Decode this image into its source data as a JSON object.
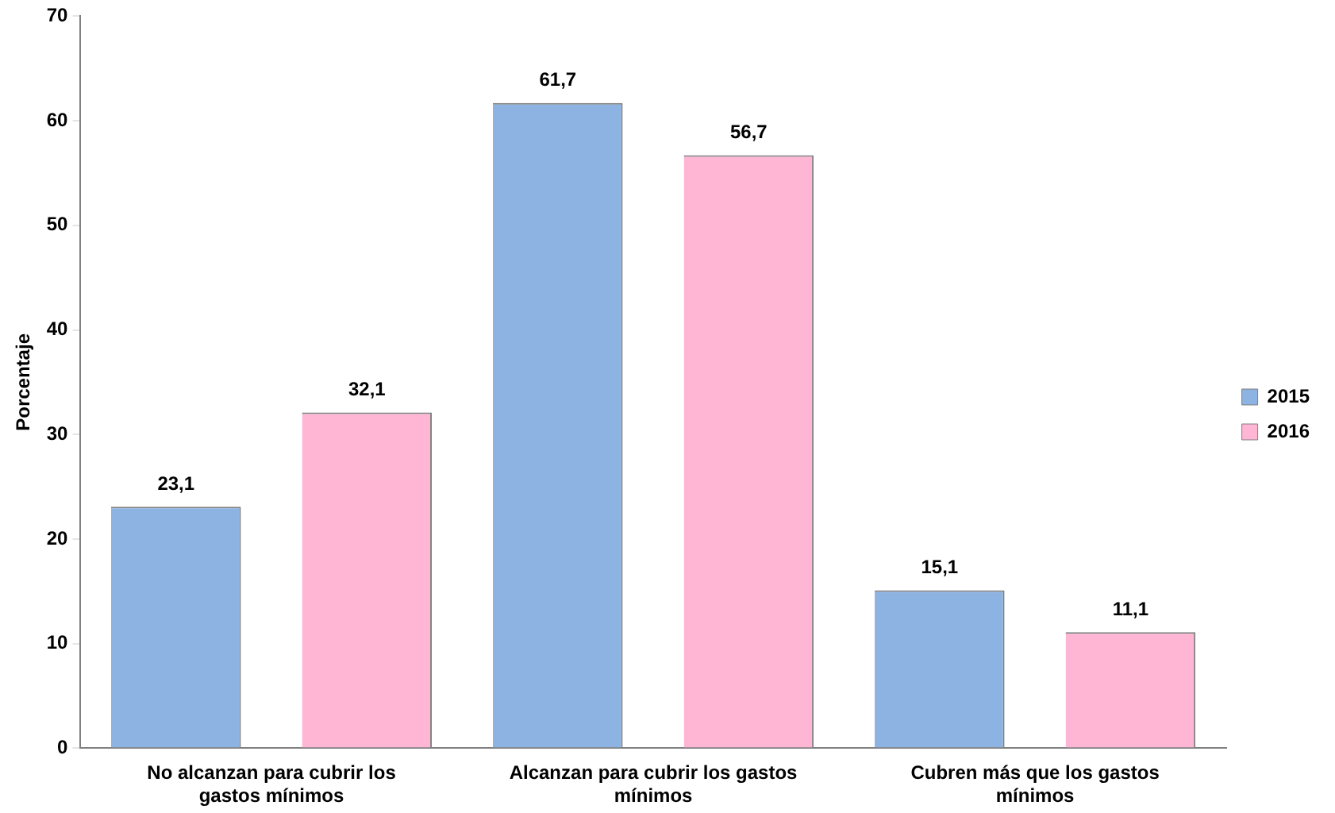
{
  "chart_data": {
    "type": "bar",
    "ylabel": "Porcentaje",
    "categories": [
      "No alcanzan para cubrir los gastos mínimos",
      "Alcanzan para cubrir los gastos mínimos",
      "Cubren más que los gastos mínimos"
    ],
    "series": [
      {
        "name": "2015",
        "color": "#8db3e2",
        "values": [
          23.1,
          61.7,
          15.1
        ],
        "value_labels": [
          "23,1",
          "61,7",
          "15,1"
        ]
      },
      {
        "name": "2016",
        "color": "#ffb6d5",
        "values": [
          32.1,
          56.7,
          11.1
        ],
        "value_labels": [
          "32,1",
          "56,7",
          "11,1"
        ]
      }
    ],
    "ylim": [
      0,
      70
    ],
    "yticks": [
      0,
      10,
      20,
      30,
      40,
      50,
      60,
      70
    ],
    "grid": false,
    "legend": "right"
  }
}
